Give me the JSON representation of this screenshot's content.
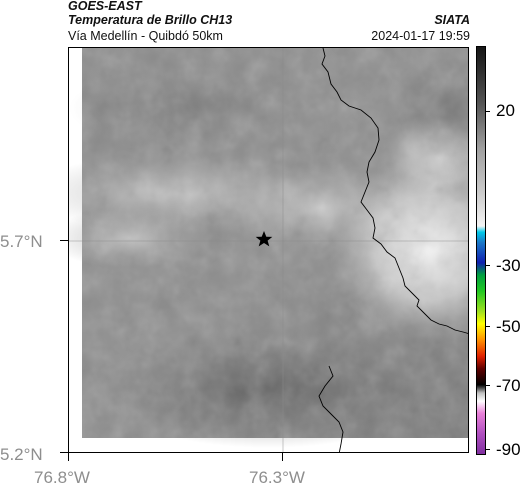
{
  "header": {
    "satellite": "GOES-EAST",
    "product": "Temperatura de Brillo CH13",
    "organization": "SIATA",
    "route": "Vía Medellín - Quibdó 50km",
    "datetime": "2024-01-17 19:59"
  },
  "map": {
    "lon_ticks": [
      {
        "value": -76.8,
        "label": "76.8°W"
      },
      {
        "value": -76.3,
        "label": "76.3°W"
      }
    ],
    "lat_ticks": [
      {
        "value": 5.7,
        "label": "5.7°N"
      },
      {
        "value": 5.2,
        "label": "5.2°N"
      }
    ],
    "gridlines": true,
    "marker": {
      "symbol": "star",
      "description": "route center point"
    }
  },
  "colorbar": {
    "ticks": [
      {
        "value": 20,
        "label": "20"
      },
      {
        "value": -30,
        "label": "-30"
      },
      {
        "value": -50,
        "label": "-50"
      },
      {
        "value": -70,
        "label": "-70"
      },
      {
        "value": -90,
        "label": "-90"
      }
    ],
    "colors": {
      "warm_top": "#161616",
      "mid_gray": "#a0a0a0",
      "light": "#f4f4f4",
      "cyan": "#00c8e8",
      "blue": "#1020b0",
      "green": "#22c822",
      "yellow": "#ffff00",
      "red": "#e02000",
      "black": "#000000",
      "pink": "#e880d8",
      "purple": "#8030a0"
    }
  }
}
